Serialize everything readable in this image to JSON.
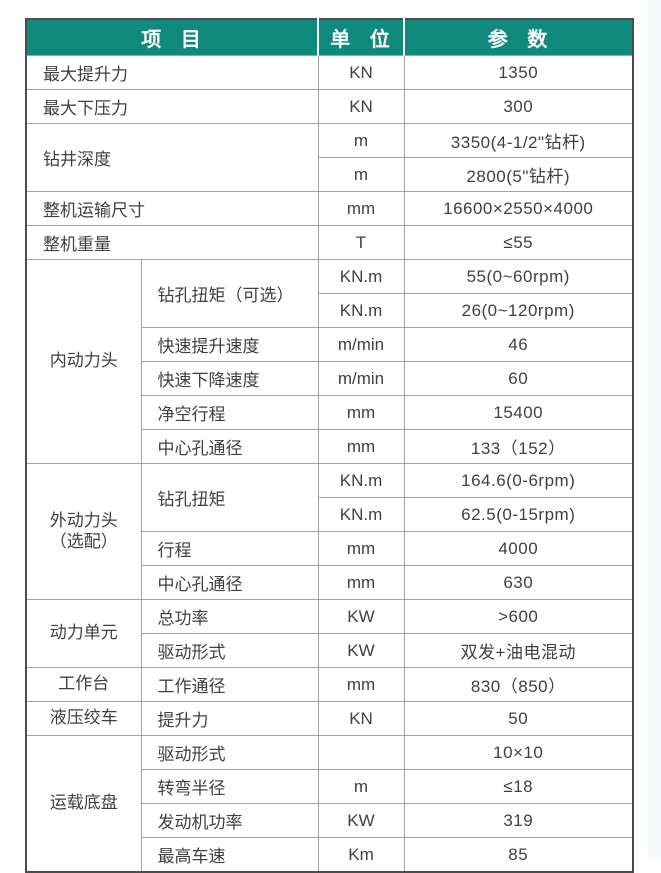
{
  "page": {
    "accent_color": "#108a7d",
    "outer_border_color": "#4c4c4c",
    "inner_border_color": "#a2a2a2",
    "text_color": "#404040",
    "right_strip_color": "#f7fafd"
  },
  "table": {
    "headers": [
      "项 目",
      "单 位",
      "参 数"
    ],
    "rows": [
      [
        {
          "text": "最大提升力",
          "colspan": 2,
          "role": "item"
        },
        {
          "text": "KN",
          "role": "unit"
        },
        {
          "text": "1350",
          "role": "value"
        }
      ],
      [
        {
          "text": "最大下压力",
          "colspan": 2,
          "role": "item"
        },
        {
          "text": "KN",
          "role": "unit"
        },
        {
          "text": "300",
          "role": "value"
        }
      ],
      [
        {
          "text": "钻井深度",
          "colspan": 2,
          "rowspan": 2,
          "role": "item"
        },
        {
          "text": "m",
          "role": "unit"
        },
        {
          "text": "3350(4-1/2\"钻杆)",
          "role": "value"
        }
      ],
      [
        {
          "text": "m",
          "role": "unit"
        },
        {
          "text": "2800(5\"钻杆)",
          "role": "value"
        }
      ],
      [
        {
          "text": "整机运输尺寸",
          "colspan": 2,
          "role": "item"
        },
        {
          "text": "mm",
          "role": "unit"
        },
        {
          "text": "16600×2550×4000",
          "role": "value"
        }
      ],
      [
        {
          "text": "整机重量",
          "colspan": 2,
          "role": "item"
        },
        {
          "text": "T",
          "role": "unit"
        },
        {
          "text": "≤55",
          "role": "value"
        }
      ],
      [
        {
          "text": "内动力头",
          "rowspan": 6,
          "role": "category"
        },
        {
          "text": "钻孔扭矩（可选）",
          "rowspan": 2,
          "role": "item"
        },
        {
          "text": "KN.m",
          "role": "unit"
        },
        {
          "text": "55(0~60rpm)",
          "role": "value"
        }
      ],
      [
        {
          "text": "KN.m",
          "role": "unit"
        },
        {
          "text": "26(0~120rpm)",
          "role": "value"
        }
      ],
      [
        {
          "text": "快速提升速度",
          "role": "item"
        },
        {
          "text": "m/min",
          "role": "unit"
        },
        {
          "text": "46",
          "role": "value"
        }
      ],
      [
        {
          "text": "快速下降速度",
          "role": "item"
        },
        {
          "text": "m/min",
          "role": "unit"
        },
        {
          "text": "60",
          "role": "value"
        }
      ],
      [
        {
          "text": "净空行程",
          "role": "item"
        },
        {
          "text": "mm",
          "role": "unit"
        },
        {
          "text": "15400",
          "role": "value"
        }
      ],
      [
        {
          "text": "中心孔通径",
          "role": "item"
        },
        {
          "text": "mm",
          "role": "unit"
        },
        {
          "text": "133（152）",
          "role": "value"
        }
      ],
      [
        {
          "text": "外动力头\n（选配）",
          "rowspan": 4,
          "role": "category"
        },
        {
          "text": "钻孔扭矩",
          "rowspan": 2,
          "role": "item"
        },
        {
          "text": "KN.m",
          "role": "unit"
        },
        {
          "text": "164.6(0-6rpm)",
          "role": "value"
        }
      ],
      [
        {
          "text": "KN.m",
          "role": "unit"
        },
        {
          "text": "62.5(0-15rpm)",
          "role": "value"
        }
      ],
      [
        {
          "text": "行程",
          "role": "item"
        },
        {
          "text": "mm",
          "role": "unit"
        },
        {
          "text": "4000",
          "role": "value"
        }
      ],
      [
        {
          "text": "中心孔通径",
          "role": "item"
        },
        {
          "text": "mm",
          "role": "unit"
        },
        {
          "text": "630",
          "role": "value"
        }
      ],
      [
        {
          "text": "动力单元",
          "rowspan": 2,
          "role": "category"
        },
        {
          "text": "总功率",
          "role": "item"
        },
        {
          "text": "KW",
          "role": "unit"
        },
        {
          "text": ">600",
          "role": "value"
        }
      ],
      [
        {
          "text": "驱动形式",
          "role": "item"
        },
        {
          "text": "KW",
          "role": "unit"
        },
        {
          "text": "双发+油电混动",
          "role": "value"
        }
      ],
      [
        {
          "text": "工作台",
          "role": "category"
        },
        {
          "text": "工作通径",
          "role": "item"
        },
        {
          "text": "mm",
          "role": "unit"
        },
        {
          "text": "830（850）",
          "role": "value"
        }
      ],
      [
        {
          "text": "液压绞车",
          "role": "category"
        },
        {
          "text": "提升力",
          "role": "item"
        },
        {
          "text": "KN",
          "role": "unit"
        },
        {
          "text": "50",
          "role": "value"
        }
      ],
      [
        {
          "text": "运载底盘",
          "rowspan": 4,
          "role": "category"
        },
        {
          "text": "驱动形式",
          "role": "item"
        },
        {
          "text": "",
          "role": "unit"
        },
        {
          "text": "10×10",
          "role": "value"
        }
      ],
      [
        {
          "text": "转弯半径",
          "role": "item"
        },
        {
          "text": "m",
          "role": "unit"
        },
        {
          "text": "≤18",
          "role": "value"
        }
      ],
      [
        {
          "text": "发动机功率",
          "role": "item"
        },
        {
          "text": "KW",
          "role": "unit"
        },
        {
          "text": "319",
          "role": "value"
        }
      ],
      [
        {
          "text": "最高车速",
          "role": "item"
        },
        {
          "text": "Km",
          "role": "unit"
        },
        {
          "text": "85",
          "role": "value"
        }
      ]
    ]
  }
}
